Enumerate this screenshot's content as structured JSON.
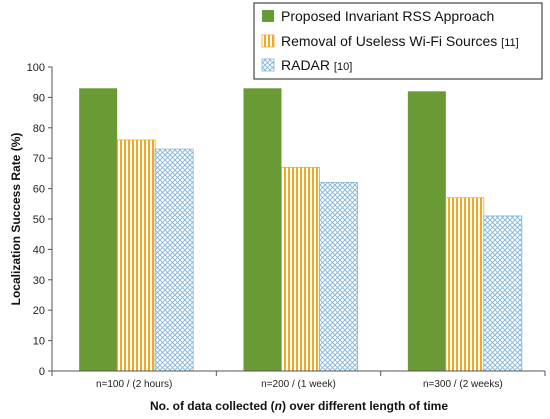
{
  "chart_data": {
    "type": "bar",
    "categories": [
      "n=100 / (2 hours)",
      "n=200 / (1 week)",
      "n=300 / (2 weeks)"
    ],
    "series": [
      {
        "name": "Proposed Invariant RSS Approach",
        "ref": "",
        "values": [
          93,
          93,
          92
        ],
        "color": "#6a9a35",
        "pattern": "solid"
      },
      {
        "name": "Removal of Useless Wi-Fi Sources",
        "ref": "[11]",
        "values": [
          76,
          67,
          57
        ],
        "color": "#f5a623",
        "pattern": "vertical-stripes"
      },
      {
        "name": "RADAR",
        "ref": "[10]",
        "values": [
          73,
          62,
          51
        ],
        "color": "#7fb4d6",
        "pattern": "crosshatch"
      }
    ],
    "title": "",
    "xlabel_parts": [
      "No. of data collected (",
      "n",
      ") over different length of time"
    ],
    "ylabel": "Localization Success Rate (%)",
    "ylim": [
      0,
      100
    ],
    "yticks": [
      0,
      10,
      20,
      30,
      40,
      50,
      60,
      70,
      80,
      90,
      100
    ],
    "grid": false,
    "legend": "top-right"
  }
}
